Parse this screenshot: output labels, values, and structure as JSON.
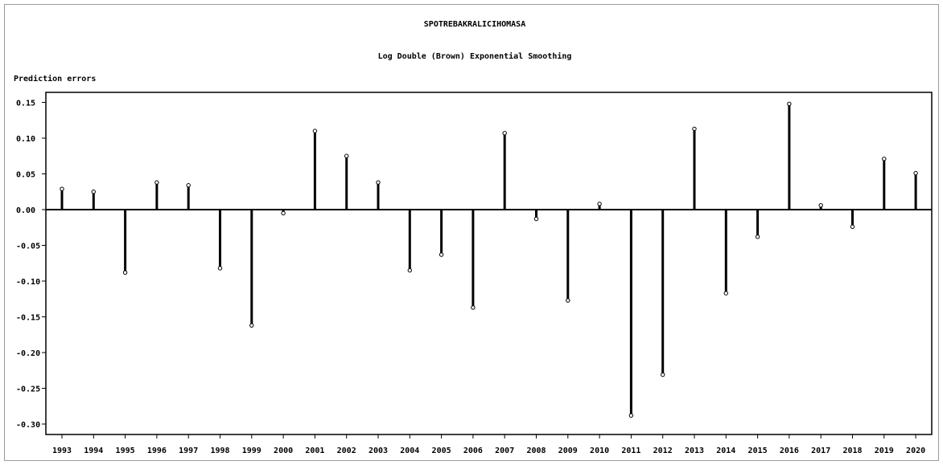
{
  "chart_data": {
    "type": "bar",
    "style": "stem",
    "title": "SPOTREBAKRALICIHOMASA",
    "subtitle": "Log Double (Brown) Exponential Smoothing",
    "ylabel": "Prediction errors",
    "xlabel": "",
    "ylim": [
      -0.32,
      0.165
    ],
    "yticks": [
      0.15,
      0.1,
      0.05,
      0.0,
      -0.05,
      -0.1,
      -0.15,
      -0.2,
      -0.25,
      -0.3
    ],
    "ytick_labels": [
      "0.15",
      "0.10",
      "0.05",
      "0.00",
      "-0.05",
      "-0.10",
      "-0.15",
      "-0.20",
      "-0.25",
      "-0.30"
    ],
    "grid": false,
    "legend": "none",
    "categories": [
      "1993",
      "1994",
      "1995",
      "1996",
      "1997",
      "1998",
      "1999",
      "2000",
      "2001",
      "2002",
      "2003",
      "2004",
      "2005",
      "2006",
      "2007",
      "2008",
      "2009",
      "2010",
      "2011",
      "2012",
      "2013",
      "2014",
      "2015",
      "2016",
      "2017",
      "2018",
      "2019",
      "2020"
    ],
    "values": [
      0.029,
      0.025,
      -0.088,
      0.038,
      0.034,
      -0.082,
      -0.162,
      -0.005,
      0.11,
      0.075,
      0.038,
      -0.085,
      -0.063,
      -0.137,
      0.107,
      -0.013,
      -0.127,
      0.008,
      -0.288,
      -0.231,
      0.113,
      -0.117,
      -0.038,
      0.148,
      0.006,
      -0.024,
      0.071,
      0.051
    ]
  }
}
